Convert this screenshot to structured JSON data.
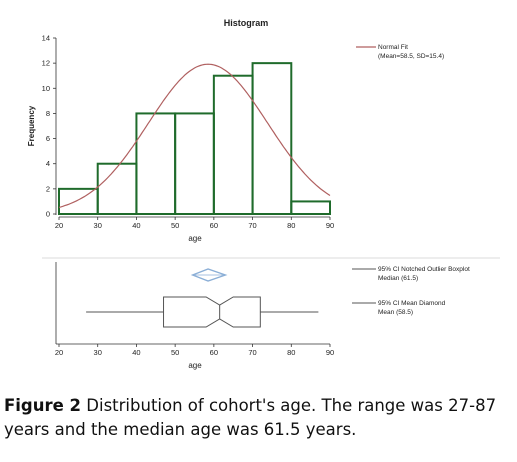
{
  "histogram": {
    "title": "Histogram",
    "xlabel": "age",
    "ylabel": "Frequency",
    "legend": {
      "line1": "Normal Fit",
      "line2": "(Mean=58.5, SD=15.4)"
    }
  },
  "boxplot": {
    "xlabel": "age",
    "legend": {
      "box_line1": "95% CI Notched Outlier Boxplot",
      "box_line2": "Median (61.5)",
      "diamond_line1": "95% CI Mean Diamond",
      "diamond_line2": "Mean (58.5)"
    }
  },
  "caption": {
    "label": "Figure 2",
    "text": "Distribution of cohort's age. The range was 27-87 years and the median age was 61.5 years."
  },
  "colors": {
    "bars": "#1f6b2b",
    "normal_fit": "#b06060",
    "diamond": "#8aaed6",
    "box": "#555555",
    "axis": "#333333"
  },
  "chart_data": [
    {
      "type": "bar",
      "title": "Histogram",
      "xlabel": "age",
      "ylabel": "Frequency",
      "bins": [
        [
          20,
          30
        ],
        [
          30,
          40
        ],
        [
          40,
          50
        ],
        [
          50,
          60
        ],
        [
          60,
          70
        ],
        [
          70,
          80
        ],
        [
          80,
          90
        ]
      ],
      "values": [
        2,
        4,
        8,
        8,
        11,
        12,
        1
      ],
      "xlim": [
        20,
        90
      ],
      "ylim": [
        0,
        14
      ],
      "xticks": [
        20,
        30,
        40,
        50,
        60,
        70,
        80,
        90
      ],
      "yticks": [
        0,
        2,
        4,
        6,
        8,
        10,
        12,
        14
      ],
      "normal_fit": {
        "mean": 58.5,
        "sd": 15.4
      },
      "legend_position": "top-right"
    },
    {
      "type": "boxplot",
      "xlabel": "age",
      "xlim": [
        20,
        90
      ],
      "xticks": [
        20,
        30,
        40,
        50,
        60,
        70,
        80,
        90
      ],
      "min": 27,
      "q1": 47,
      "median": 61.5,
      "q3": 72,
      "max": 87,
      "notch_ci": [
        58,
        65
      ],
      "mean": 58.5,
      "mean_ci": [
        54.5,
        63
      ],
      "legend_position": "right"
    }
  ]
}
